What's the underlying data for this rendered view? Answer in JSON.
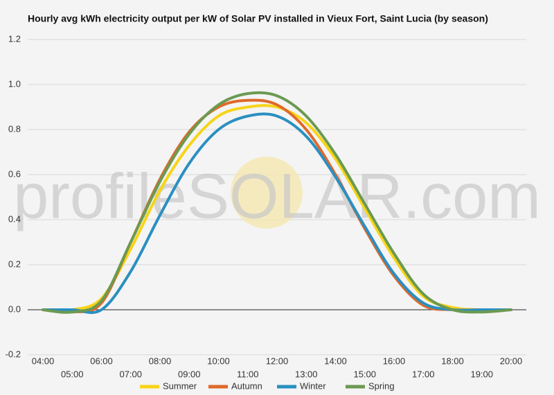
{
  "chart_data": {
    "type": "line",
    "title": "Hourly avg kWh electricity output per kW of Solar PV installed in Vieux Fort, Saint Lucia (by season)",
    "watermark": "profileSOLAR.com",
    "categories": [
      "04:00",
      "05:00",
      "06:00",
      "07:00",
      "08:00",
      "09:00",
      "10:00",
      "11:00",
      "12:00",
      "13:00",
      "14:00",
      "15:00",
      "16:00",
      "17:00",
      "18:00",
      "19:00",
      "20:00"
    ],
    "series": [
      {
        "name": "Summer",
        "color": "#f7d417",
        "values": [
          0,
          0,
          0.05,
          0.27,
          0.53,
          0.73,
          0.86,
          0.9,
          0.9,
          0.83,
          0.67,
          0.45,
          0.23,
          0.06,
          0.01,
          0,
          0
        ]
      },
      {
        "name": "Autumn",
        "color": "#e0692a",
        "values": [
          0,
          -0.01,
          0.03,
          0.3,
          0.58,
          0.79,
          0.9,
          0.93,
          0.91,
          0.8,
          0.6,
          0.36,
          0.15,
          0.02,
          0,
          0,
          0
        ]
      },
      {
        "name": "Winter",
        "color": "#2a8fc1",
        "values": [
          0,
          0,
          0,
          0.17,
          0.42,
          0.65,
          0.8,
          0.86,
          0.86,
          0.77,
          0.59,
          0.37,
          0.16,
          0.03,
          0,
          0,
          0
        ]
      },
      {
        "name": "Spring",
        "color": "#6b9a51",
        "values": [
          0,
          -0.01,
          0.04,
          0.3,
          0.57,
          0.78,
          0.91,
          0.96,
          0.95,
          0.86,
          0.69,
          0.47,
          0.25,
          0.07,
          0,
          -0.01,
          0
        ]
      }
    ],
    "ylim": [
      -0.2,
      1.2
    ],
    "yticks": [
      -0.2,
      {
        "value": 0,
        "label": "0.0"
      },
      0.2,
      0.4,
      0.6,
      0.8,
      {
        "value": 1,
        "label": "1.0"
      },
      1.2
    ],
    "grid": true
  }
}
